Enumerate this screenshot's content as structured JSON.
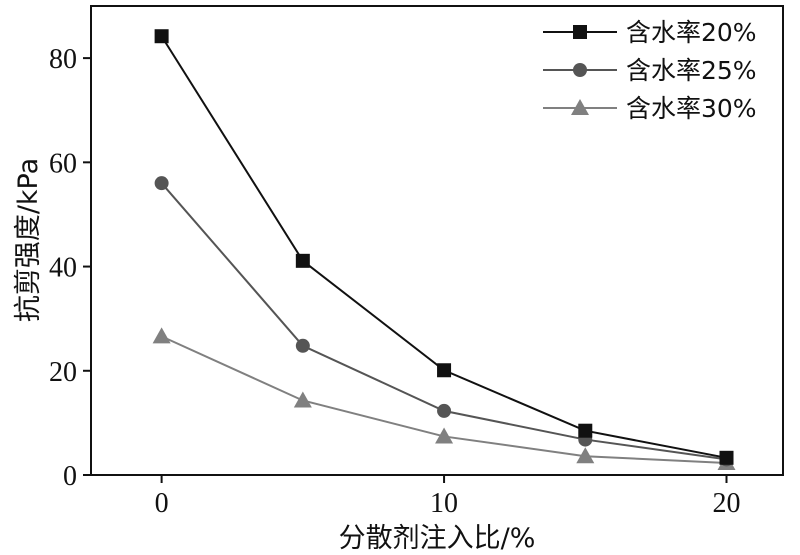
{
  "chart_data": {
    "type": "line",
    "title": "",
    "xlabel": "分散剂注入比/%",
    "ylabel": "抗剪强度/kPa",
    "x": [
      0,
      5,
      10,
      15,
      20
    ],
    "xticks": [
      0,
      10,
      20
    ],
    "yticks": [
      0,
      20,
      40,
      60,
      80
    ],
    "xlim": [
      -2.5,
      22
    ],
    "ylim": [
      0,
      90
    ],
    "grid": false,
    "legend_position": "top-right",
    "series": [
      {
        "name": "含水率20%",
        "marker": "square",
        "color": "#111111",
        "values": [
          84.2,
          41.1,
          20.1,
          8.5,
          3.3
        ]
      },
      {
        "name": "含水率25%",
        "marker": "circle",
        "color": "#555555",
        "values": [
          56.0,
          24.8,
          12.3,
          6.8,
          3.0
        ]
      },
      {
        "name": "含水率30%",
        "marker": "triangle",
        "color": "#808080",
        "values": [
          26.6,
          14.3,
          7.4,
          3.6,
          2.3
        ]
      }
    ]
  }
}
